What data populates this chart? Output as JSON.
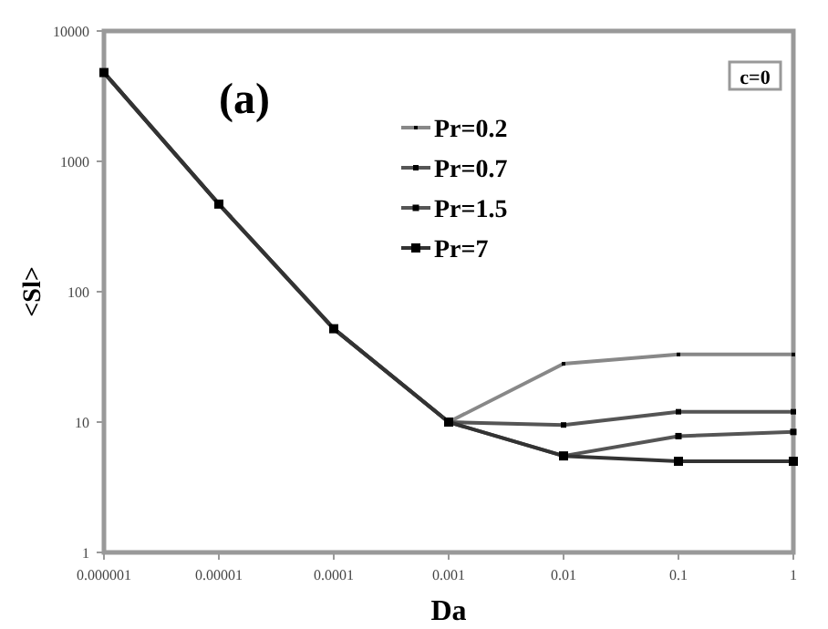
{
  "chart_data": {
    "type": "line",
    "xlabel": "Da",
    "ylabel": "<Sl>",
    "log": "xy",
    "xlim": [
      1e-06,
      1
    ],
    "xticks": [
      {
        "value": 1e-06,
        "label": "0.000001"
      },
      {
        "value": 1e-05,
        "label": "0.00001"
      },
      0.0001,
      0.001,
      0.01,
      0.1,
      1
    ],
    "ylim": [
      1,
      10000
    ],
    "yticks": [
      1,
      10,
      100,
      1000,
      10000
    ],
    "grid": false,
    "legend": "top",
    "marker": "square",
    "line_style": "solid",
    "annotations": [
      "(a)",
      "c=0"
    ],
    "x": [
      1e-06,
      1e-05,
      0.0001,
      0.001,
      0.01,
      0.1,
      1
    ],
    "series": [
      {
        "name": "Pr=0.2",
        "color": "#888888",
        "values": [
          4800,
          470,
          52,
          10,
          28,
          33,
          33
        ]
      },
      {
        "name": "Pr=0.7",
        "color": "#555555",
        "values": [
          4800,
          470,
          52,
          10,
          9.5,
          12,
          12
        ]
      },
      {
        "name": "Pr=1.5",
        "color": "#555555",
        "values": [
          4800,
          470,
          52,
          10,
          5.5,
          7.8,
          8.4
        ]
      },
      {
        "name": "Pr=7",
        "color": "#333333",
        "values": [
          4800,
          470,
          52,
          10,
          5.5,
          5,
          5
        ]
      }
    ]
  }
}
